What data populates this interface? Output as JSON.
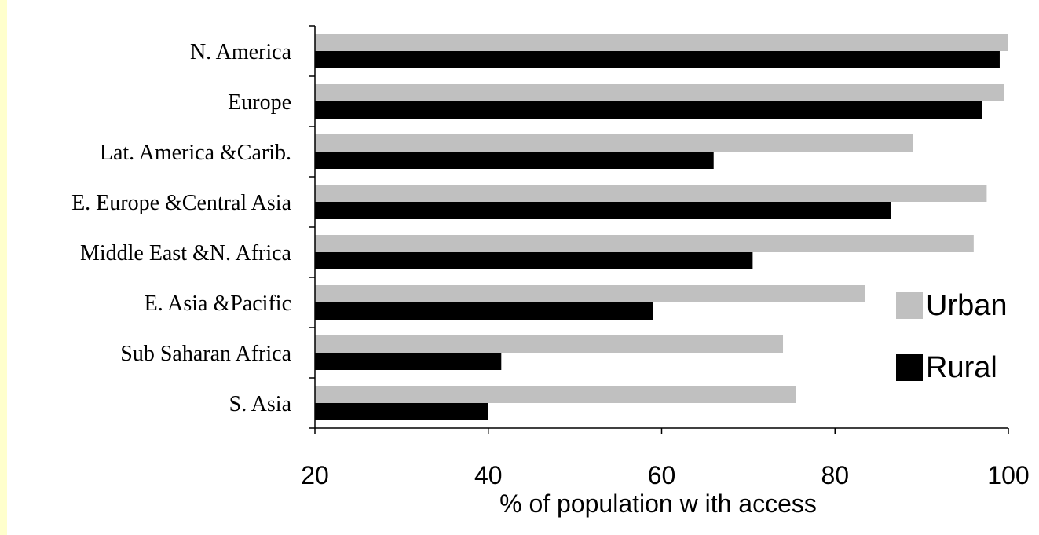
{
  "chart_data": {
    "type": "bar",
    "orientation": "horizontal",
    "categories": [
      "N. America",
      "Europe",
      "Lat. America &Carib.",
      "E. Europe &Central Asia",
      "Middle East &N. Africa",
      "E. Asia &Pacific",
      "Sub Saharan Africa",
      "S. Asia"
    ],
    "series": [
      {
        "name": "Urban",
        "color": "#c0c0c0",
        "values": [
          100,
          99.5,
          89,
          97.5,
          96,
          83.5,
          74,
          75.5
        ]
      },
      {
        "name": "Rural",
        "color": "#000000",
        "values": [
          99,
          97,
          66,
          86.5,
          70.5,
          59,
          41.5,
          40
        ]
      }
    ],
    "xlabel": "% of population w ith access",
    "xlim": [
      20,
      100
    ],
    "xticks": [
      "20",
      "40",
      "60",
      "80",
      "100"
    ],
    "grid": false,
    "legend_position": "right"
  }
}
